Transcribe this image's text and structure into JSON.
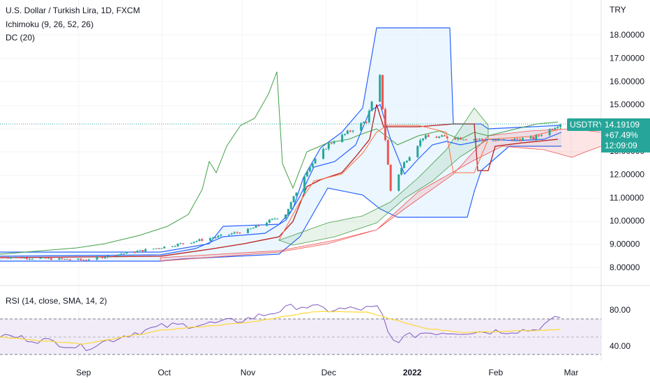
{
  "legend": {
    "title": "U.S. Dollar / Turkish Lira, 1D, FXCM",
    "ichimoku": "Ichimoku (9, 26, 52, 26)",
    "donchian": "DC (20)",
    "rsi": "RSI (14, close, SMA, 14, 2)"
  },
  "currency_label": "TRY",
  "symbol_tag": "USDTRY",
  "price_box": {
    "price": "14.19109",
    "change": "+67.49%",
    "countdown": "12:09:09"
  },
  "colors": {
    "up": "#26a69a",
    "down": "#ef5350",
    "kumo_green": "#43a047",
    "kumo_red": "#ef5350",
    "tenkan": "#2962ff",
    "kijun": "#b71c1c",
    "lagging": "#43a047",
    "dc": "#2962ff",
    "dc_fill": "#e3f2fd",
    "rsi": "#7e57c2",
    "rsi_ma": "#fdd835",
    "rsi_band": "#ede7f6"
  },
  "chart_data": [
    {
      "type": "candlestick",
      "title": "U.S. Dollar / Turkish Lira, 1D, FXCM",
      "ylim": [
        7.5,
        19.2
      ],
      "y_ticks": [
        8,
        9,
        10,
        11,
        12,
        13,
        14,
        15,
        16,
        17,
        18
      ],
      "y_tick_labels": [
        "8.00000",
        "9.00000",
        "10.00000",
        "11.00000",
        "12.00000",
        "13.00000",
        "14.00000",
        "15.00000",
        "16.00000",
        "17.00000",
        "18.00000"
      ],
      "x_tick_labels": [
        "Sep",
        "Oct",
        "Nov",
        "Dec",
        "2022",
        "Feb",
        "Mar"
      ],
      "last_price": 14.19109,
      "approx_close_path": [
        {
          "date": "2021-08-01",
          "close": 8.45
        },
        {
          "date": "2021-09-01",
          "close": 8.32
        },
        {
          "date": "2021-10-01",
          "close": 8.88
        },
        {
          "date": "2021-10-20",
          "close": 9.3
        },
        {
          "date": "2021-11-01",
          "close": 9.6
        },
        {
          "date": "2021-11-15",
          "close": 10.3
        },
        {
          "date": "2021-11-23",
          "close": 12.2
        },
        {
          "date": "2021-12-01",
          "close": 13.3
        },
        {
          "date": "2021-12-15",
          "close": 14.3
        },
        {
          "date": "2021-12-20",
          "close": 16.2
        },
        {
          "date": "2021-12-22",
          "close": 13.5
        },
        {
          "date": "2021-12-24",
          "close": 11.3
        },
        {
          "date": "2021-12-29",
          "close": 12.5
        },
        {
          "date": "2022-01-05",
          "close": 13.6
        },
        {
          "date": "2022-01-15",
          "close": 13.6
        },
        {
          "date": "2022-02-01",
          "close": 13.45
        },
        {
          "date": "2022-02-15",
          "close": 13.55
        },
        {
          "date": "2022-02-25",
          "close": 14.19
        }
      ],
      "ichimoku": {
        "tenkan": 9,
        "kijun": 26,
        "senkou": 52,
        "displacement": 26
      },
      "donchian": {
        "length": 20
      }
    },
    {
      "type": "line",
      "title": "RSI (14, close, SMA, 14, 2)",
      "ylim": [
        20,
        100
      ],
      "y_ticks": [
        40,
        80
      ],
      "y_tick_labels": [
        "40.00",
        "80.00"
      ],
      "band": [
        30,
        70
      ],
      "series": [
        {
          "values_by_date": [
            {
              "date": "2021-08-01",
              "value": 52
            },
            {
              "date": "2021-08-20",
              "value": 45
            },
            {
              "date": "2021-09-01",
              "value": 38
            },
            {
              "date": "2021-09-20",
              "value": 55
            },
            {
              "date": "2021-10-01",
              "value": 62
            },
            {
              "date": "2021-10-20",
              "value": 65
            },
            {
              "date": "2021-11-01",
              "value": 70
            },
            {
              "date": "2021-11-20",
              "value": 85
            },
            {
              "date": "2021-12-01",
              "value": 80
            },
            {
              "date": "2021-12-20",
              "value": 82
            },
            {
              "date": "2021-12-24",
              "value": 45
            },
            {
              "date": "2022-01-05",
              "value": 55
            },
            {
              "date": "2022-01-25",
              "value": 56
            },
            {
              "date": "2022-02-15",
              "value": 58
            },
            {
              "date": "2022-02-25",
              "value": 72
            }
          ]
        },
        {
          "values_by_date": [
            {
              "date": "2021-08-01",
              "value": 50
            },
            {
              "date": "2021-09-01",
              "value": 42
            },
            {
              "date": "2021-10-01",
              "value": 58
            },
            {
              "date": "2021-11-01",
              "value": 66
            },
            {
              "date": "2021-11-25",
              "value": 78
            },
            {
              "date": "2021-12-15",
              "value": 78
            },
            {
              "date": "2022-01-05",
              "value": 60
            },
            {
              "date": "2022-01-20",
              "value": 55
            },
            {
              "date": "2022-02-25",
              "value": 58
            }
          ]
        }
      ]
    }
  ]
}
